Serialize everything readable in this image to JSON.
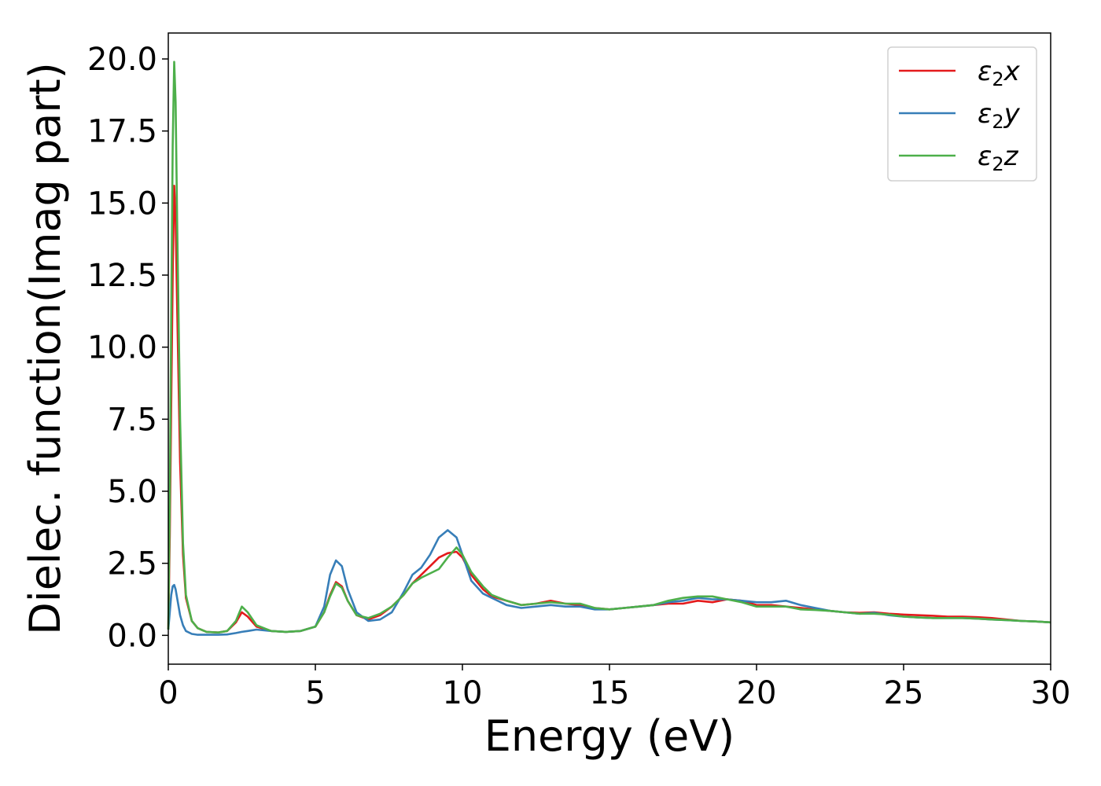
{
  "chart_data": {
    "type": "line",
    "title": "",
    "xlabel": "Energy (eV)",
    "ylabel": "Dielec. function(Imag part)",
    "xlim": [
      0,
      30
    ],
    "ylim": [
      -1.0,
      20.9
    ],
    "xticks": [
      0,
      5,
      10,
      15,
      20,
      25,
      30
    ],
    "xtick_labels": [
      "0",
      "5",
      "10",
      "15",
      "20",
      "25",
      "30"
    ],
    "yticks": [
      0.0,
      2.5,
      5.0,
      7.5,
      10.0,
      12.5,
      15.0,
      17.5,
      20.0
    ],
    "ytick_labels": [
      "0.0",
      "2.5",
      "5.0",
      "7.5",
      "10.0",
      "12.5",
      "15.0",
      "17.5",
      "20.0"
    ],
    "grid": false,
    "legend_position": "top-right",
    "series": [
      {
        "name": "ε₂x",
        "legend_main": "ε",
        "legend_sub": "2",
        "legend_tail": "x",
        "color": "#e41a1c",
        "x": [
          0,
          0.05,
          0.1,
          0.15,
          0.2,
          0.25,
          0.3,
          0.4,
          0.5,
          0.6,
          0.8,
          1.0,
          1.3,
          1.7,
          2.0,
          2.3,
          2.5,
          2.7,
          3.0,
          3.5,
          4.0,
          4.5,
          5.0,
          5.3,
          5.5,
          5.7,
          5.9,
          6.1,
          6.4,
          6.8,
          7.2,
          7.6,
          8.0,
          8.3,
          8.6,
          8.9,
          9.2,
          9.5,
          9.8,
          10.0,
          10.3,
          10.7,
          11.0,
          11.5,
          12.0,
          12.5,
          13.0,
          13.5,
          14.0,
          14.5,
          15.0,
          15.5,
          16.0,
          16.5,
          17.0,
          17.5,
          18.0,
          18.5,
          19.0,
          19.5,
          20.0,
          20.5,
          21.0,
          21.5,
          22.0,
          22.5,
          23.0,
          23.5,
          24.0,
          24.5,
          25.0,
          25.5,
          26.0,
          26.5,
          27.0,
          27.5,
          28.0,
          28.5,
          29.0,
          29.5,
          30.0
        ],
        "y": [
          0.2,
          3.5,
          8.0,
          12.5,
          15.6,
          14.5,
          11.5,
          6.0,
          2.8,
          1.3,
          0.5,
          0.25,
          0.12,
          0.1,
          0.15,
          0.45,
          0.8,
          0.65,
          0.3,
          0.15,
          0.12,
          0.15,
          0.3,
          0.8,
          1.4,
          1.85,
          1.7,
          1.2,
          0.7,
          0.55,
          0.7,
          1.0,
          1.4,
          1.8,
          2.1,
          2.4,
          2.7,
          2.85,
          2.9,
          2.7,
          2.1,
          1.6,
          1.35,
          1.2,
          1.05,
          1.1,
          1.2,
          1.1,
          1.05,
          0.95,
          0.9,
          0.95,
          1.0,
          1.05,
          1.1,
          1.1,
          1.2,
          1.15,
          1.25,
          1.2,
          1.05,
          1.05,
          1.0,
          0.95,
          0.9,
          0.85,
          0.8,
          0.78,
          0.8,
          0.75,
          0.72,
          0.7,
          0.68,
          0.65,
          0.65,
          0.63,
          0.6,
          0.55,
          0.5,
          0.48,
          0.45
        ]
      },
      {
        "name": "ε₂y",
        "legend_main": "ε",
        "legend_sub": "2",
        "legend_tail": "y",
        "color": "#377eb8",
        "x": [
          0,
          0.05,
          0.1,
          0.15,
          0.2,
          0.25,
          0.3,
          0.4,
          0.5,
          0.6,
          0.8,
          1.0,
          1.3,
          1.7,
          2.0,
          2.3,
          2.5,
          2.7,
          3.0,
          3.5,
          4.0,
          4.5,
          5.0,
          5.3,
          5.5,
          5.7,
          5.9,
          6.1,
          6.4,
          6.8,
          7.2,
          7.6,
          8.0,
          8.3,
          8.6,
          8.9,
          9.2,
          9.5,
          9.8,
          10.0,
          10.3,
          10.7,
          11.0,
          11.5,
          12.0,
          12.5,
          13.0,
          13.5,
          14.0,
          14.5,
          15.0,
          15.5,
          16.0,
          16.5,
          17.0,
          17.5,
          18.0,
          18.5,
          19.0,
          19.5,
          20.0,
          20.5,
          21.0,
          21.5,
          22.0,
          22.5,
          23.0,
          23.5,
          24.0,
          24.5,
          25.0,
          25.5,
          26.0,
          26.5,
          27.0,
          27.5,
          28.0,
          28.5,
          29.0,
          29.5,
          30.0
        ],
        "y": [
          0.2,
          0.8,
          1.4,
          1.7,
          1.75,
          1.6,
          1.3,
          0.7,
          0.35,
          0.15,
          0.05,
          0.02,
          0.02,
          0.02,
          0.03,
          0.08,
          0.12,
          0.15,
          0.2,
          0.15,
          0.12,
          0.15,
          0.3,
          1.0,
          2.1,
          2.6,
          2.4,
          1.6,
          0.8,
          0.5,
          0.55,
          0.8,
          1.5,
          2.1,
          2.35,
          2.8,
          3.4,
          3.65,
          3.4,
          2.8,
          1.9,
          1.45,
          1.3,
          1.05,
          0.95,
          1.0,
          1.05,
          1.0,
          1.0,
          0.9,
          0.9,
          0.95,
          1.0,
          1.05,
          1.15,
          1.2,
          1.3,
          1.25,
          1.25,
          1.2,
          1.15,
          1.15,
          1.2,
          1.05,
          0.95,
          0.85,
          0.8,
          0.75,
          0.78,
          0.7,
          0.65,
          0.62,
          0.6,
          0.6,
          0.6,
          0.58,
          0.55,
          0.53,
          0.5,
          0.48,
          0.45
        ]
      },
      {
        "name": "ε₂z",
        "legend_main": "ε",
        "legend_sub": "2",
        "legend_tail": "z",
        "color": "#4daf4a",
        "x": [
          0,
          0.05,
          0.1,
          0.15,
          0.2,
          0.25,
          0.3,
          0.4,
          0.5,
          0.6,
          0.8,
          1.0,
          1.3,
          1.7,
          2.0,
          2.3,
          2.5,
          2.7,
          3.0,
          3.5,
          4.0,
          4.5,
          5.0,
          5.3,
          5.5,
          5.7,
          5.9,
          6.1,
          6.4,
          6.8,
          7.2,
          7.6,
          8.0,
          8.3,
          8.6,
          8.9,
          9.2,
          9.5,
          9.8,
          10.0,
          10.3,
          10.7,
          11.0,
          11.5,
          12.0,
          12.5,
          13.0,
          13.5,
          14.0,
          14.5,
          15.0,
          15.5,
          16.0,
          16.5,
          17.0,
          17.5,
          18.0,
          18.5,
          19.0,
          19.5,
          20.0,
          20.5,
          21.0,
          21.5,
          22.0,
          22.5,
          23.0,
          23.5,
          24.0,
          24.5,
          25.0,
          25.5,
          26.0,
          26.5,
          27.0,
          27.5,
          28.0,
          28.5,
          29.0,
          29.5,
          30.0
        ],
        "y": [
          0.2,
          4.5,
          11.0,
          17.0,
          19.9,
          18.5,
          14.5,
          7.5,
          3.2,
          1.4,
          0.5,
          0.25,
          0.12,
          0.1,
          0.15,
          0.5,
          1.0,
          0.8,
          0.35,
          0.15,
          0.12,
          0.15,
          0.3,
          0.8,
          1.35,
          1.8,
          1.65,
          1.2,
          0.7,
          0.6,
          0.75,
          1.0,
          1.4,
          1.8,
          2.0,
          2.15,
          2.3,
          2.7,
          3.05,
          2.8,
          2.2,
          1.7,
          1.4,
          1.2,
          1.05,
          1.1,
          1.15,
          1.1,
          1.1,
          0.95,
          0.9,
          0.95,
          1.0,
          1.05,
          1.2,
          1.3,
          1.35,
          1.35,
          1.25,
          1.15,
          1.0,
          1.0,
          1.0,
          0.9,
          0.88,
          0.85,
          0.8,
          0.75,
          0.75,
          0.72,
          0.65,
          0.62,
          0.6,
          0.6,
          0.6,
          0.58,
          0.55,
          0.53,
          0.5,
          0.48,
          0.45
        ]
      }
    ]
  }
}
